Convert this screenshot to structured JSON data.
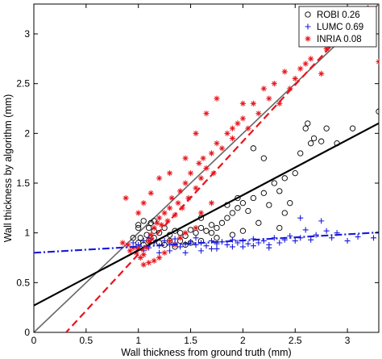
{
  "chart_data": {
    "type": "scatter",
    "xlabel": "Wall thickness from ground truth (mm)",
    "ylabel": "Wall thickness by algorithm (mm)",
    "xlim": [
      0,
      3.3
    ],
    "ylim": [
      0,
      3.3
    ],
    "xticks": [
      0,
      0.5,
      1,
      1.5,
      2,
      2.5,
      3
    ],
    "yticks": [
      0,
      0.5,
      1,
      1.5,
      2,
      2.5,
      3
    ],
    "xtick_labels": [
      "0",
      "0.5",
      "1",
      "1.5",
      "2",
      "2.5",
      "3"
    ],
    "ytick_labels": [
      "0",
      "0.5",
      "1",
      "1.5",
      "2",
      "2.5",
      "3"
    ],
    "legend_position": "top-right",
    "identity_line": {
      "color": "#666666",
      "from": [
        0,
        0
      ],
      "to": [
        3.3,
        3.3
      ]
    },
    "series": [
      {
        "name": "ROBI 0.26",
        "marker": "circle",
        "color": "#000000",
        "fit": {
          "intercept": 0.27,
          "slope": 0.555,
          "color": "#000000",
          "dash": "solid"
        },
        "points": [
          [
            1.0,
            1.08
          ],
          [
            1.05,
            1.12
          ],
          [
            1.1,
            1.05
          ],
          [
            1.12,
            1.1
          ],
          [
            1.15,
            1.02
          ],
          [
            1.08,
            0.98
          ],
          [
            1.02,
            0.95
          ],
          [
            1.2,
            1.0
          ],
          [
            1.25,
            1.05
          ],
          [
            1.3,
            0.98
          ],
          [
            1.35,
            1.02
          ],
          [
            1.4,
            1.0
          ],
          [
            1.45,
            0.97
          ],
          [
            1.5,
            1.03
          ],
          [
            1.55,
            1.0
          ],
          [
            1.6,
            1.05
          ],
          [
            1.65,
            1.02
          ],
          [
            1.7,
            1.08
          ],
          [
            1.75,
            1.05
          ],
          [
            1.8,
            1.1
          ],
          [
            1.85,
            1.15
          ],
          [
            1.9,
            1.2
          ],
          [
            1.95,
            1.25
          ],
          [
            2.0,
            1.3
          ],
          [
            2.05,
            1.22
          ],
          [
            2.1,
            1.35
          ],
          [
            2.2,
            1.4
          ],
          [
            2.25,
            1.28
          ],
          [
            2.3,
            1.5
          ],
          [
            2.35,
            1.42
          ],
          [
            2.4,
            1.55
          ],
          [
            2.45,
            1.3
          ],
          [
            2.5,
            1.6
          ],
          [
            2.55,
            1.8
          ],
          [
            2.6,
            2.05
          ],
          [
            2.62,
            2.1
          ],
          [
            2.65,
            1.9
          ],
          [
            2.68,
            1.95
          ],
          [
            2.75,
            1.92
          ],
          [
            2.8,
            2.05
          ],
          [
            2.9,
            1.9
          ],
          [
            3.05,
            2.05
          ],
          [
            3.3,
            2.22
          ],
          [
            2.1,
            1.85
          ],
          [
            2.2,
            1.75
          ],
          [
            1.85,
            1.28
          ],
          [
            1.95,
            1.35
          ],
          [
            1.6,
            1.15
          ],
          [
            1.7,
            1.0
          ],
          [
            1.3,
            0.92
          ],
          [
            1.2,
            0.9
          ],
          [
            1.1,
            0.92
          ],
          [
            1.05,
            0.88
          ],
          [
            0.95,
            0.95
          ],
          [
            1.0,
            0.9
          ],
          [
            1.15,
            0.95
          ],
          [
            1.25,
            0.88
          ],
          [
            1.4,
            0.92
          ],
          [
            1.5,
            0.9
          ],
          [
            1.35,
            0.86
          ],
          [
            2.0,
            1.02
          ],
          [
            2.15,
            1.1
          ],
          [
            1.75,
            0.95
          ],
          [
            1.9,
            0.98
          ],
          [
            1.6,
            0.92
          ],
          [
            1.45,
            0.88
          ],
          [
            2.4,
            1.2
          ],
          [
            2.35,
            1.05
          ],
          [
            1.15,
            1.12
          ],
          [
            1.0,
            1.05
          ]
        ]
      },
      {
        "name": "LUMC 0.69",
        "marker": "plus",
        "color": "#1a1adc",
        "fit": {
          "intercept": 0.8,
          "slope": 0.062,
          "color": "#1a1adc",
          "dash": "dashdot"
        },
        "points": [
          [
            0.95,
            0.9
          ],
          [
            1.0,
            0.88
          ],
          [
            1.05,
            0.92
          ],
          [
            1.1,
            0.85
          ],
          [
            1.15,
            0.9
          ],
          [
            1.2,
            0.87
          ],
          [
            1.25,
            0.92
          ],
          [
            1.3,
            0.88
          ],
          [
            1.35,
            0.9
          ],
          [
            1.4,
            0.86
          ],
          [
            1.45,
            0.89
          ],
          [
            1.5,
            0.91
          ],
          [
            1.55,
            0.88
          ],
          [
            1.6,
            0.9
          ],
          [
            1.65,
            0.87
          ],
          [
            1.7,
            0.92
          ],
          [
            1.75,
            0.89
          ],
          [
            1.8,
            0.91
          ],
          [
            1.85,
            0.88
          ],
          [
            1.9,
            0.93
          ],
          [
            1.95,
            0.9
          ],
          [
            2.0,
            0.92
          ],
          [
            2.05,
            0.89
          ],
          [
            2.1,
            0.94
          ],
          [
            2.15,
            0.9
          ],
          [
            2.2,
            0.92
          ],
          [
            2.25,
            0.88
          ],
          [
            2.3,
            0.95
          ],
          [
            2.35,
            0.9
          ],
          [
            2.4,
            0.93
          ],
          [
            2.45,
            0.97
          ],
          [
            2.5,
            0.92
          ],
          [
            2.55,
            0.95
          ],
          [
            2.6,
            1.03
          ],
          [
            2.65,
            0.93
          ],
          [
            2.7,
            0.98
          ],
          [
            2.8,
            1.02
          ],
          [
            2.85,
            0.95
          ],
          [
            2.9,
            1.0
          ],
          [
            3.0,
            0.92
          ],
          [
            3.1,
            0.96
          ],
          [
            3.25,
            0.95
          ],
          [
            2.55,
            1.15
          ],
          [
            2.75,
            1.12
          ],
          [
            1.2,
            0.8
          ],
          [
            1.3,
            0.82
          ],
          [
            1.45,
            0.8
          ],
          [
            1.6,
            0.82
          ],
          [
            1.75,
            0.84
          ],
          [
            1.9,
            0.86
          ],
          [
            2.1,
            0.87
          ],
          [
            2.25,
            0.85
          ],
          [
            1.1,
            0.95
          ],
          [
            1.05,
            0.82
          ],
          [
            0.98,
            0.86
          ],
          [
            1.35,
            0.94
          ],
          [
            1.55,
            0.95
          ],
          [
            1.7,
            0.84
          ],
          [
            2.0,
            0.86
          ]
        ]
      },
      {
        "name": "INRIA 0.08",
        "marker": "asterisk",
        "color": "#e8141c",
        "fit": {
          "intercept": -0.35,
          "slope": 1.135,
          "color": "#e8141c",
          "dash": "dashed"
        },
        "points": [
          [
            0.85,
            0.9
          ],
          [
            0.9,
            0.88
          ],
          [
            0.92,
            0.82
          ],
          [
            0.95,
            0.85
          ],
          [
            0.98,
            0.8
          ],
          [
            1.0,
            0.84
          ],
          [
            1.02,
            0.75
          ],
          [
            1.05,
            0.78
          ],
          [
            1.08,
            0.85
          ],
          [
            1.1,
            0.92
          ],
          [
            1.12,
            0.98
          ],
          [
            1.15,
            1.05
          ],
          [
            1.18,
            1.1
          ],
          [
            1.2,
            1.15
          ],
          [
            1.22,
            1.08
          ],
          [
            1.25,
            1.2
          ],
          [
            1.28,
            1.12
          ],
          [
            1.3,
            1.25
          ],
          [
            1.32,
            1.35
          ],
          [
            1.35,
            1.18
          ],
          [
            1.38,
            1.3
          ],
          [
            1.4,
            1.42
          ],
          [
            1.42,
            1.25
          ],
          [
            1.45,
            1.5
          ],
          [
            1.48,
            1.35
          ],
          [
            1.5,
            1.6
          ],
          [
            1.55,
            1.45
          ],
          [
            1.58,
            1.7
          ],
          [
            1.6,
            1.55
          ],
          [
            1.62,
            1.75
          ],
          [
            1.65,
            1.65
          ],
          [
            1.7,
            1.8
          ],
          [
            1.72,
            1.6
          ],
          [
            1.75,
            1.9
          ],
          [
            1.8,
            1.85
          ],
          [
            1.85,
            2.0
          ],
          [
            1.9,
            1.95
          ],
          [
            1.95,
            2.1
          ],
          [
            2.0,
            2.15
          ],
          [
            2.05,
            2.05
          ],
          [
            2.1,
            2.3
          ],
          [
            2.15,
            2.2
          ],
          [
            2.2,
            2.45
          ],
          [
            2.25,
            2.35
          ],
          [
            2.3,
            2.5
          ],
          [
            2.35,
            2.3
          ],
          [
            2.4,
            2.62
          ],
          [
            2.45,
            2.45
          ],
          [
            2.5,
            2.55
          ],
          [
            2.55,
            2.65
          ],
          [
            2.6,
            2.7
          ],
          [
            2.65,
            2.75
          ],
          [
            2.75,
            2.6
          ],
          [
            2.8,
            2.85
          ],
          [
            2.85,
            2.95
          ],
          [
            3.3,
            2.72
          ],
          [
            1.2,
            0.75
          ],
          [
            1.25,
            0.8
          ],
          [
            1.15,
            0.72
          ],
          [
            1.1,
            0.7
          ],
          [
            1.05,
            0.68
          ],
          [
            1.3,
            0.92
          ],
          [
            1.35,
            0.88
          ],
          [
            1.4,
            0.95
          ],
          [
            1.45,
            1.0
          ],
          [
            1.55,
            1.05
          ],
          [
            1.6,
            1.2
          ],
          [
            1.7,
            1.3
          ],
          [
            0.88,
            1.35
          ],
          [
            1.0,
            1.2
          ],
          [
            1.05,
            1.3
          ],
          [
            1.12,
            1.4
          ],
          [
            1.2,
            1.55
          ],
          [
            1.3,
            1.6
          ],
          [
            1.45,
            1.75
          ],
          [
            1.55,
            2.0
          ],
          [
            1.65,
            2.2
          ],
          [
            1.75,
            2.35
          ],
          [
            1.9,
            2.05
          ],
          [
            2.0,
            2.3
          ]
        ]
      }
    ]
  }
}
